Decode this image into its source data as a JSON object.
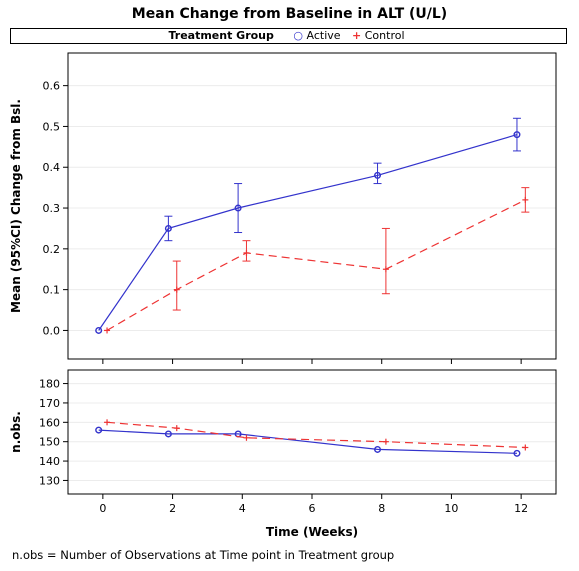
{
  "chart_data": [
    {
      "type": "line",
      "title": "Mean Change from Baseline in ALT (U/L)",
      "legend": {
        "title": "Treatment Group",
        "placement": "top",
        "entries": [
          "Active",
          "Control"
        ]
      },
      "ylabel": "Mean (95%CI) Change from Bsl.",
      "ylim": [
        -0.07,
        0.68
      ],
      "yticks": [
        "0.0",
        "0.1",
        "0.2",
        "0.3",
        "0.4",
        "0.5",
        "0.6"
      ],
      "grid": true,
      "series": [
        {
          "name": "Active",
          "color": "#3333cc",
          "line_style": "solid",
          "marker": "circle",
          "x": [
            0,
            2,
            4,
            8,
            12
          ],
          "y": [
            0.0,
            0.25,
            0.3,
            0.38,
            0.48
          ],
          "ci_low": [
            0.0,
            0.22,
            0.24,
            0.36,
            0.44
          ],
          "ci_high": [
            0.0,
            0.28,
            0.36,
            0.41,
            0.52
          ]
        },
        {
          "name": "Control",
          "color": "#ee3333",
          "line_style": "dashed",
          "marker": "plus",
          "x": [
            0,
            2,
            4,
            8,
            12
          ],
          "y": [
            0.0,
            0.1,
            0.19,
            0.15,
            0.32
          ],
          "ci_low": [
            0.0,
            0.05,
            0.17,
            0.09,
            0.29
          ],
          "ci_high": [
            0.0,
            0.17,
            0.22,
            0.25,
            0.35
          ]
        }
      ]
    },
    {
      "type": "line",
      "ylabel": "n.obs.",
      "xlabel": "Time (Weeks)",
      "xlim": [
        -1,
        13
      ],
      "xticks": [
        "0",
        "2",
        "4",
        "6",
        "8",
        "10",
        "12"
      ],
      "ylim": [
        123,
        187
      ],
      "yticks": [
        "130",
        "140",
        "150",
        "160",
        "170",
        "180"
      ],
      "grid": true,
      "series": [
        {
          "name": "Active",
          "color": "#3333cc",
          "line_style": "solid",
          "marker": "circle",
          "x": [
            0,
            2,
            4,
            8,
            12
          ],
          "y": [
            156,
            154,
            154,
            146,
            144
          ]
        },
        {
          "name": "Control",
          "color": "#ee3333",
          "line_style": "dashed",
          "marker": "plus",
          "x": [
            0,
            2,
            4,
            8,
            12
          ],
          "y": [
            160,
            157,
            152,
            150,
            147
          ]
        }
      ]
    }
  ],
  "footnote": "n.obs = Number of Observations at Time point in Treatment group"
}
